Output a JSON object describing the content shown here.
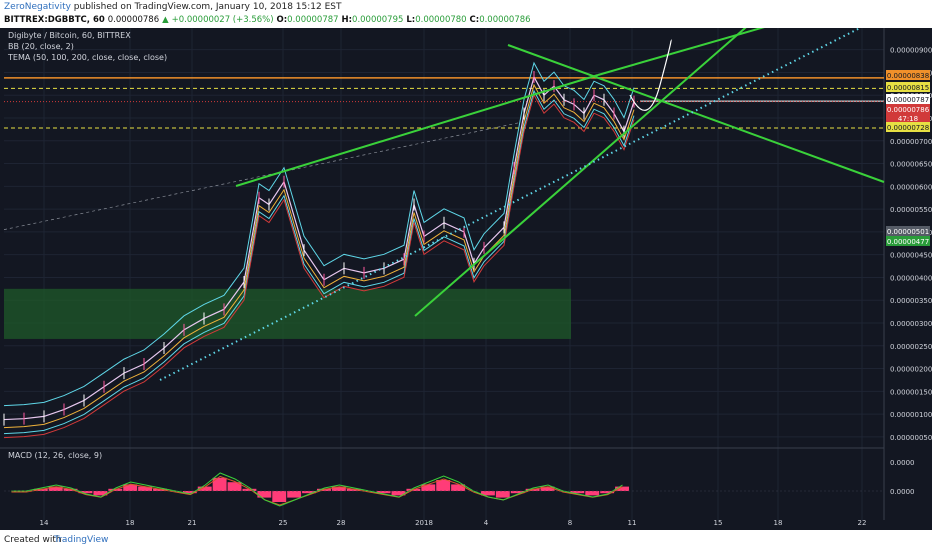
{
  "header": {
    "author": "ZeroNegativity",
    "published": "published on TradingView.com, January 10, 2018 15:12 EST",
    "symbol": "BITTREX:DGBBTC, 60",
    "open": "0.00000786",
    "change": "+0.00000027 (+3.56%)",
    "o_label": "O:",
    "o_value": "0.00000787",
    "h_label": "H:",
    "h_value": "0.00000795",
    "l_label": "L:",
    "l_value": "0.00000780",
    "c_label": "C:",
    "c_value": "0.00000786"
  },
  "legend": {
    "title": "Digibyte / Bitcoin, 60, BITTREX",
    "bb": "BB (20, close, 2)",
    "tema": "TEMA (50, 100, 200, close, close, close)",
    "macd": "MACD (12, 26, close, 9)"
  },
  "footer": {
    "created": "Created with",
    "brand": "TradingView"
  },
  "colors": {
    "background": "#131722",
    "trendline_green": "#3ad13a",
    "dotted_cyan": "#5fd7e8",
    "orange_level": "#f0902a",
    "yellow_level": "#e7e043",
    "red_level": "#d13a3a",
    "zone_green": "#1f5a2a",
    "macd_red": "#ff3c78",
    "macd_signal": "#3ad13a",
    "macd_line": "#d65a2a"
  },
  "price_labels": [
    {
      "text": "0.00000838",
      "bg": "#f0902a",
      "fg": "#131722"
    },
    {
      "text": "0.00000815",
      "bg": "#e7e043",
      "fg": "#131722"
    },
    {
      "text": "0.00000787",
      "bg": "#ffffff",
      "fg": "#131722"
    },
    {
      "text": "0.00000786",
      "bg": "#d13a3a",
      "fg": "#ffffff"
    },
    {
      "text": "47:18",
      "bg": "#d13a3a",
      "fg": "#ffffff"
    },
    {
      "text": "0.00000728",
      "bg": "#e7e043",
      "fg": "#131722"
    },
    {
      "text": "0.00000501",
      "bg": "#555b66",
      "fg": "#ffffff"
    },
    {
      "text": "0.00000477",
      "bg": "#2a9d3a",
      "fg": "#ffffff"
    }
  ],
  "chart_data": {
    "type": "line",
    "title": "Digibyte / Bitcoin, 60, BITTREX",
    "xlabel": "",
    "ylabel": "",
    "x_ticks": [
      "14",
      "18",
      "21",
      "25",
      "28",
      "2018",
      "4",
      "8",
      "11",
      "15",
      "18",
      "22"
    ],
    "y_ticks": [
      "0.00000900",
      "0.00000850",
      "0.00000800",
      "0.00000750",
      "0.00000700",
      "0.00000650",
      "0.00000600",
      "0.00000550",
      "0.00000500",
      "0.00000450",
      "0.00000400",
      "0.00000350",
      "0.00000300",
      "0.00000250",
      "0.00000200",
      "0.00000150",
      "0.00000100",
      "0.00000050"
    ],
    "ylim": [
      3e-07,
      9.3e-06
    ],
    "grid": true,
    "horizontal_levels": [
      {
        "name": "orange",
        "value": 8.38e-06
      },
      {
        "name": "yellow-top",
        "value": 8.15e-06
      },
      {
        "name": "white",
        "value": 7.87e-06
      },
      {
        "name": "red",
        "value": 7.86e-06
      },
      {
        "name": "yellow-bottom",
        "value": 7.28e-06
      }
    ],
    "demand_zone": {
      "y_low": 2.65e-06,
      "y_high": 3.75e-06
    },
    "series": [
      {
        "type": "line",
        "x": [
          0,
          20,
          40,
          60,
          80,
          100,
          120,
          140,
          160,
          180,
          200,
          220,
          240,
          255,
          265,
          280,
          300,
          320,
          340,
          360,
          380,
          400,
          410,
          420,
          440,
          460,
          470,
          480,
          500,
          510,
          520,
          530,
          540,
          550,
          560,
          570,
          580,
          590,
          600,
          610,
          620,
          630
        ],
        "y": [
          8.8e-07,
          9e-07,
          9.5e-07,
          1.1e-06,
          1.3e-06,
          1.6e-06,
          1.9e-06,
          2.1e-06,
          2.45e-06,
          2.85e-06,
          3.1e-06,
          3.3e-06,
          3.9e-06,
          5.75e-06,
          5.6e-06,
          6.1e-06,
          4.6e-06,
          3.95e-06,
          4.2e-06,
          4.1e-06,
          4.2e-06,
          4.4e-06,
          5.6e-06,
          4.9e-06,
          5.2e-06,
          5e-06,
          4.3e-06,
          4.65e-06,
          5.1e-06,
          6.4e-06,
          7.6e-06,
          8.4e-06,
          8e-06,
          8.2e-06,
          7.9e-06,
          7.8e-06,
          7.6e-06,
          8e-06,
          7.9e-06,
          7.6e-06,
          7.2e-06,
          7.86e-06
        ]
      }
    ],
    "macd": {
      "ticks": [
        "0.0000"
      ],
      "bars": [
        0,
        0,
        1,
        2,
        1,
        -1,
        -2,
        1,
        3,
        2,
        1,
        0,
        -1,
        2,
        6,
        4,
        1,
        -3,
        -5,
        -3,
        -1,
        1,
        2,
        1,
        0,
        -1,
        -2,
        1,
        3,
        5,
        3,
        0,
        -2,
        -3,
        -1,
        1,
        2,
        0,
        -1,
        -2,
        -1,
        2
      ]
    }
  }
}
